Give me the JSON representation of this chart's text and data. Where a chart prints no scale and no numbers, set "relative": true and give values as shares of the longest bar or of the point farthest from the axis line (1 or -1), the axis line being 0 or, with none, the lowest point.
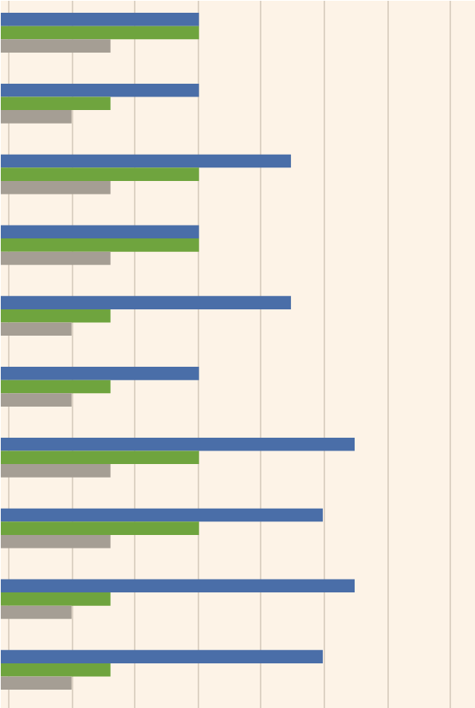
{
  "chart_data": {
    "type": "bar",
    "orientation": "horizontal",
    "relative": true,
    "grid": "x",
    "categories": [
      null,
      null,
      null,
      null,
      null,
      null,
      null,
      null,
      null,
      null
    ],
    "series": [
      {
        "color": "#4a6ea8",
        "values": [
          0.56,
          0.56,
          0.82,
          0.56,
          0.82,
          0.56,
          1,
          0.91,
          1,
          0.91
        ]
      },
      {
        "color": "#6fa43e",
        "values": [
          0.56,
          0.31,
          0.56,
          0.56,
          0.31,
          0.31,
          0.56,
          0.56,
          0.31,
          0.31
        ]
      },
      {
        "color": "#a59e94",
        "values": [
          0.31,
          0.2,
          0.31,
          0.31,
          0.2,
          0.2,
          0.31,
          0.31,
          0.2,
          0.2
        ]
      }
    ]
  }
}
